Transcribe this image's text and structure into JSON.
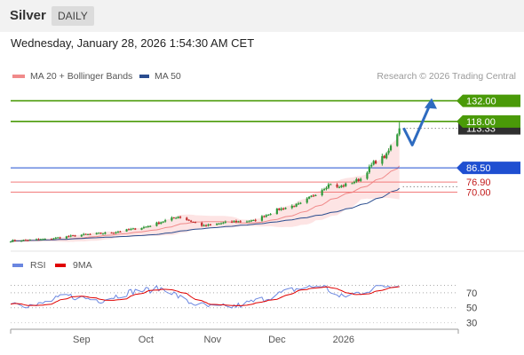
{
  "header": {
    "title": "Silver",
    "period": "DAILY"
  },
  "timestamp": "Wednesday, January 28, 2026 1:54:30 AM CET",
  "legend": [
    {
      "label": "MA 20 + Bollinger Bands",
      "color": "#f08a8a"
    },
    {
      "label": "MA 50",
      "color": "#2a4d8f"
    }
  ],
  "credit": "Research © 2026 Trading Central",
  "rsi_legend": [
    {
      "label": "RSI",
      "color": "#6a86e0"
    },
    {
      "label": "9MA",
      "color": "#e00000"
    }
  ],
  "colors": {
    "up": "#2e9a3a",
    "down": "#c22b2b",
    "target": "#4a9a08",
    "pivot": "#1f4fd1",
    "support": "#f27a7a",
    "support_text": "#c21b1b",
    "arrow": "#2e6bc0",
    "band_fill": "#fde4e4"
  },
  "chart_data": [
    {
      "type": "candlestick",
      "x_range": [
        "2025-07-30",
        "2026-02-23"
      ],
      "x_ticks": [
        "Sep",
        "Oct",
        "Nov",
        "Dec",
        "2026"
      ],
      "x_tick_dates": [
        "2025-09-01",
        "2025-10-01",
        "2025-11-01",
        "2025-12-01",
        "2026-01-01"
      ],
      "y_range": [
        33,
        142
      ],
      "levels": [
        {
          "label": "132.00",
          "value": 132.0,
          "role": "target"
        },
        {
          "label": "118.00",
          "value": 118.0,
          "role": "target"
        },
        {
          "label": "86.50",
          "value": 86.5,
          "role": "pivot"
        },
        {
          "label": "76.90",
          "value": 76.9,
          "role": "support"
        },
        {
          "label": "70.00",
          "value": 70.0,
          "role": "support"
        }
      ],
      "last_price": {
        "label": "113.33",
        "value": 113.33
      },
      "forecast_path": [
        {
          "date": "2026-01-29",
          "value": 113.5
        },
        {
          "date": "2026-02-02",
          "value": 102.0
        },
        {
          "date": "2026-02-11",
          "value": 132.0
        }
      ],
      "anchors": [
        {
          "date": "2025-07-30",
          "value": 37.0
        },
        {
          "date": "2025-08-15",
          "value": 38.0
        },
        {
          "date": "2025-09-01",
          "value": 41.0
        },
        {
          "date": "2025-09-15",
          "value": 42.5
        },
        {
          "date": "2025-10-01",
          "value": 46.5
        },
        {
          "date": "2025-10-16",
          "value": 53.5
        },
        {
          "date": "2025-10-28",
          "value": 47.0
        },
        {
          "date": "2025-11-10",
          "value": 50.0
        },
        {
          "date": "2025-11-20",
          "value": 50.5
        },
        {
          "date": "2025-12-01",
          "value": 58.0
        },
        {
          "date": "2025-12-12",
          "value": 62.0
        },
        {
          "date": "2025-12-26",
          "value": 76.0
        },
        {
          "date": "2025-12-29",
          "value": 73.0
        },
        {
          "date": "2026-01-02",
          "value": 75.0
        },
        {
          "date": "2026-01-09",
          "value": 79.0
        },
        {
          "date": "2026-01-15",
          "value": 90.0
        },
        {
          "date": "2026-01-21",
          "value": 95.0
        },
        {
          "date": "2026-01-26",
          "value": 110.0
        },
        {
          "date": "2026-01-27",
          "value": 113.33
        }
      ]
    },
    {
      "type": "line",
      "name": "RSI",
      "y_ticks": [
        70,
        50,
        30
      ],
      "y_range": [
        20,
        96
      ],
      "anchors": [
        {
          "date": "2025-07-30",
          "value": 58
        },
        {
          "date": "2025-08-10",
          "value": 52
        },
        {
          "date": "2025-08-25",
          "value": 66
        },
        {
          "date": "2025-09-10",
          "value": 60
        },
        {
          "date": "2025-09-25",
          "value": 72
        },
        {
          "date": "2025-10-10",
          "value": 76
        },
        {
          "date": "2025-10-20",
          "value": 58
        },
        {
          "date": "2025-11-01",
          "value": 50
        },
        {
          "date": "2025-11-12",
          "value": 52
        },
        {
          "date": "2025-11-25",
          "value": 62
        },
        {
          "date": "2025-12-08",
          "value": 74
        },
        {
          "date": "2025-12-22",
          "value": 80
        },
        {
          "date": "2025-12-30",
          "value": 64
        },
        {
          "date": "2026-01-08",
          "value": 70
        },
        {
          "date": "2026-01-18",
          "value": 78
        },
        {
          "date": "2026-01-27",
          "value": 82
        }
      ]
    }
  ]
}
